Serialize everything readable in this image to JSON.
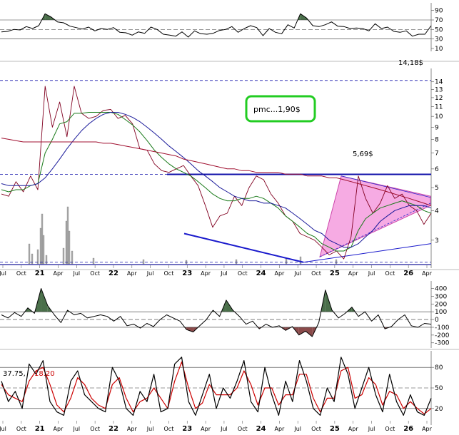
{
  "chart_data": {
    "type": "line",
    "x_tick_labels": [
      "Jul",
      "Oct",
      "21",
      "Apr",
      "Jul",
      "Oct",
      "22",
      "Apr",
      "Jul",
      "Oct",
      "23",
      "Apr",
      "Jul",
      "Oct",
      "24",
      "Apr",
      "Jul",
      "Oct",
      "25",
      "Apr",
      "Jul",
      "Oct",
      "26",
      "Apr"
    ],
    "panels": [
      {
        "id": "rsi",
        "y_ticks": [
          10,
          30,
          50,
          70,
          90
        ],
        "ylim": [
          10,
          100
        ],
        "reference_lines": [
          30,
          70
        ],
        "series": [
          {
            "values": [
              45,
              46,
              50,
              49,
              56,
              52,
              58,
              83,
              76,
              66,
              64,
              57,
              54,
              51,
              55,
              47,
              52,
              50,
              54,
              44,
              43,
              38,
              45,
              42,
              55,
              50,
              40,
              38,
              36,
              45,
              34,
              47,
              41,
              40,
              42,
              48,
              50,
              56,
              44,
              52,
              58,
              54,
              37,
              52,
              44,
              41,
              60,
              53,
              83,
              74,
              58,
              56,
              60,
              66,
              57,
              56,
              52,
              53,
              52,
              47,
              62,
              52,
              55,
              46,
              44,
              47,
              36,
              40,
              40,
              58
            ]
          }
        ]
      },
      {
        "id": "price",
        "y_ticks": [
          3,
          4,
          5,
          6,
          7,
          8,
          9,
          10,
          11,
          12,
          13,
          14
        ],
        "y_scale": "log",
        "ylim": [
          2.35,
          15.5
        ],
        "annotations": [
          {
            "text": "14,18$",
            "value": 14.18
          },
          {
            "text": "5,69$",
            "value": 5.69
          },
          {
            "text": "pmc...1,90$"
          }
        ],
        "series": [
          {
            "name": "price",
            "values": [
              4.7,
              4.6,
              5.3,
              4.8,
              5.6,
              4.9,
              13.4,
              9.0,
              11.5,
              8.2,
              13.4,
              10.3,
              9.8,
              10.0,
              10.6,
              10.7,
              9.8,
              10.1,
              9.3,
              7.3,
              7.2,
              6.3,
              5.9,
              5.8,
              6.0,
              6.2,
              5.6,
              5.1,
              4.2,
              3.4,
              3.8,
              3.9,
              4.6,
              4.2,
              5.0,
              5.6,
              5.4,
              4.7,
              4.3,
              3.8,
              3.6,
              3.2,
              3.1,
              3.0,
              2.8,
              2.6,
              2.7,
              2.5,
              3.1,
              5.6,
              4.5,
              3.9,
              4.3,
              5.1,
              4.5,
              4.7,
              4.2,
              4.0,
              3.5,
              3.9
            ]
          },
          {
            "name": "ma_short",
            "values": [
              4.9,
              4.8,
              4.9,
              4.9,
              5.1,
              5.2,
              7.0,
              8.0,
              9.3,
              9.5,
              10.3,
              10.3,
              10.4,
              10.4,
              10.4,
              10.4,
              10.2,
              9.7,
              9.2,
              8.6,
              7.9,
              7.2,
              6.7,
              6.3,
              6.0,
              5.8,
              5.6,
              5.3,
              5.0,
              4.7,
              4.5,
              4.4,
              4.4,
              4.5,
              4.5,
              4.6,
              4.5,
              4.3,
              4.1,
              3.8,
              3.6,
              3.4,
              3.2,
              3.1,
              2.9,
              2.8,
              2.7,
              2.7,
              2.8,
              3.3,
              3.7,
              3.9,
              4.1,
              4.2,
              4.3,
              4.4,
              4.3,
              4.2,
              4.0,
              3.9
            ]
          },
          {
            "name": "ma_mid",
            "values": [
              5.2,
              5.1,
              5.1,
              5.1,
              5.1,
              5.2,
              5.5,
              6.0,
              6.6,
              7.3,
              8.0,
              8.7,
              9.3,
              9.8,
              10.2,
              10.4,
              10.4,
              10.2,
              9.9,
              9.5,
              9.0,
              8.5,
              8.0,
              7.5,
              7.1,
              6.7,
              6.3,
              5.9,
              5.6,
              5.3,
              5.0,
              4.8,
              4.6,
              4.5,
              4.4,
              4.4,
              4.3,
              4.3,
              4.2,
              4.1,
              3.9,
              3.7,
              3.5,
              3.3,
              3.2,
              3.0,
              2.9,
              2.8,
              2.8,
              2.9,
              3.1,
              3.3,
              3.6,
              3.8,
              4.0,
              4.1,
              4.2,
              4.2,
              4.2,
              4.1
            ]
          },
          {
            "name": "ma_long",
            "values": [
              8.1,
              8.0,
              7.9,
              7.8,
              7.8,
              7.8,
              7.8,
              7.8,
              7.8,
              7.8,
              7.8,
              7.8,
              7.8,
              7.8,
              7.7,
              7.7,
              7.6,
              7.5,
              7.4,
              7.3,
              7.2,
              7.1,
              7.0,
              6.9,
              6.8,
              6.6,
              6.5,
              6.4,
              6.3,
              6.2,
              6.1,
              6.0,
              6.0,
              5.9,
              5.9,
              5.8,
              5.8,
              5.8,
              5.8,
              5.7,
              5.7,
              5.7,
              5.6,
              5.6,
              5.6,
              5.5,
              5.5,
              5.4,
              5.3,
              5.2,
              5.1,
              5.0,
              4.9,
              4.8,
              4.7,
              4.6,
              4.5,
              4.4,
              4.3,
              4.2
            ]
          }
        ]
      },
      {
        "id": "cci",
        "y_ticks": [
          -300,
          -200,
          -100,
          0,
          100,
          200,
          300,
          400
        ],
        "ylim": [
          -330,
          460
        ],
        "reference_lines": [
          -100,
          0,
          100
        ],
        "series": [
          {
            "values": [
              60,
              20,
              90,
              40,
              150,
              80,
              400,
              180,
              60,
              -40,
              120,
              60,
              80,
              20,
              40,
              60,
              40,
              -20,
              40,
              -80,
              -60,
              -110,
              -50,
              -90,
              0,
              60,
              20,
              -20,
              -130,
              -160,
              -80,
              0,
              120,
              40,
              250,
              120,
              40,
              -60,
              -20,
              -120,
              -60,
              -100,
              -80,
              -140,
              -90,
              -200,
              -150,
              -220,
              -40,
              380,
              120,
              20,
              80,
              160,
              40,
              100,
              -20,
              60,
              -120,
              -90,
              0,
              60,
              -80,
              -100,
              -50,
              -60
            ]
          }
        ]
      },
      {
        "id": "stochastic",
        "readouts": [
          "37.75,",
          "18.20"
        ],
        "y_ticks": [
          20,
          50,
          80
        ],
        "ylim": [
          0,
          100
        ],
        "reference_lines": [
          20,
          50,
          80
        ],
        "series": [
          {
            "name": "%K",
            "values": [
              60,
              30,
              45,
              20,
              85,
              70,
              90,
              30,
              15,
              10,
              60,
              75,
              40,
              30,
              20,
              15,
              80,
              60,
              20,
              10,
              45,
              30,
              70,
              15,
              20,
              85,
              95,
              30,
              10,
              40,
              70,
              20,
              50,
              35,
              60,
              90,
              30,
              15,
              80,
              40,
              10,
              60,
              30,
              90,
              60,
              20,
              10,
              50,
              30,
              95,
              70,
              20,
              50,
              80,
              40,
              15,
              70,
              30,
              10,
              40,
              15,
              10,
              35
            ]
          },
          {
            "name": "%D",
            "values": [
              55,
              40,
              35,
              30,
              60,
              75,
              80,
              55,
              25,
              15,
              35,
              65,
              55,
              35,
              25,
              20,
              55,
              65,
              35,
              15,
              30,
              35,
              50,
              35,
              20,
              60,
              88,
              50,
              20,
              28,
              55,
              40,
              40,
              40,
              50,
              75,
              55,
              25,
              50,
              50,
              25,
              40,
              40,
              70,
              70,
              35,
              15,
              35,
              35,
              75,
              80,
              35,
              40,
              65,
              55,
              25,
              45,
              40,
              20,
              30,
              20,
              12,
              20
            ]
          }
        ]
      }
    ]
  },
  "colors": {
    "price_line": "#800020",
    "ma_short": "#1a7a1a",
    "ma_mid": "#1a1a9a",
    "ma_long": "#a01030",
    "resistance": "#1010aa",
    "triangle_fill": "#ee66cc",
    "label_box_border": "#22cc22",
    "oscillator_positive": "#4a6f4a",
    "oscillator_negative": "#8a4a4a",
    "stoch_d": "#cc0000"
  }
}
